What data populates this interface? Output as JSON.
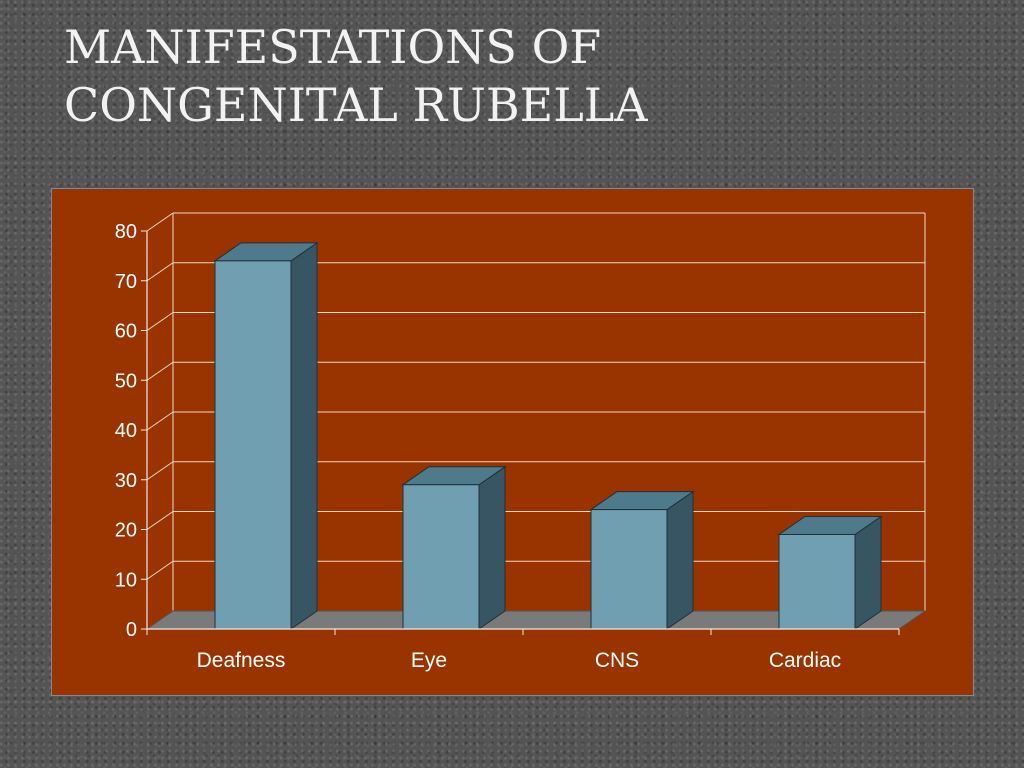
{
  "slide": {
    "title_line1": "MANIFESTATIONS OF",
    "title_line2": "CONGENITAL RUBELLA"
  },
  "chart_data": {
    "type": "bar",
    "style": "3d-column",
    "categories": [
      "Deafness",
      "Eye",
      "CNS",
      "Cardiac"
    ],
    "values": [
      74,
      29,
      24,
      19
    ],
    "title": "",
    "xlabel": "",
    "ylabel": "",
    "ylim": [
      0,
      80
    ],
    "yticks": [
      0,
      10,
      20,
      30,
      40,
      50,
      60,
      70,
      80
    ],
    "grid": true,
    "legend": "none",
    "colors": {
      "plot_background": "#993300",
      "bar_front": "#6f9fb0",
      "bar_top": "#4f7a8c",
      "bar_side": "#375563",
      "floor": "#7a7a7a",
      "gridline": "#f0d8c8",
      "text": "#ffffff"
    }
  }
}
